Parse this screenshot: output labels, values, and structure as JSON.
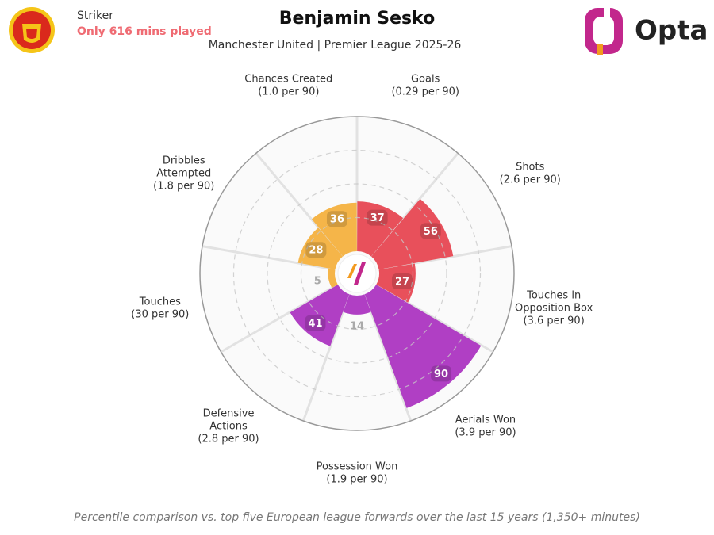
{
  "chart_data": {
    "type": "polar_bar",
    "title": "Benjamin Sesko",
    "subtitle": "Manchester United | Premier League 2025-26",
    "position": "Striker",
    "note": "Only 616 mins played",
    "brand": "Opta",
    "footnote": "Percentile comparison vs. top five European league forwards over the last 15 years (1,350+ minutes)",
    "categories": [
      [
        "Goals"
      ],
      [
        "Shots"
      ],
      [
        "Touches in",
        "Opposition Box"
      ],
      [
        "Aerials Won"
      ],
      [
        "Possession Won"
      ],
      [
        "Defensive",
        "Actions"
      ],
      [
        "Touches"
      ],
      [
        "Dribbles",
        "Attempted"
      ],
      [
        "Chances Created"
      ]
    ],
    "per90_labels": [
      "(0.29 per 90)",
      "(2.6 per 90)",
      "(3.6 per 90)",
      "(3.9 per 90)",
      "(1.9 per 90)",
      "(2.8 per 90)",
      "(30 per 90)",
      "(1.8 per 90)",
      "(1.0 per 90)"
    ],
    "values": [
      37,
      56,
      27,
      90,
      14,
      41,
      5,
      28,
      36
    ],
    "colors": [
      "#e8505b",
      "#e8505b",
      "#e8505b",
      "#b03fc4",
      "#b03fc4",
      "#b03fc4",
      "#f5b549",
      "#f5b549",
      "#f5b549"
    ],
    "rlim": [
      0,
      100
    ],
    "rticks": [
      25,
      50,
      75
    ],
    "grid": true
  }
}
